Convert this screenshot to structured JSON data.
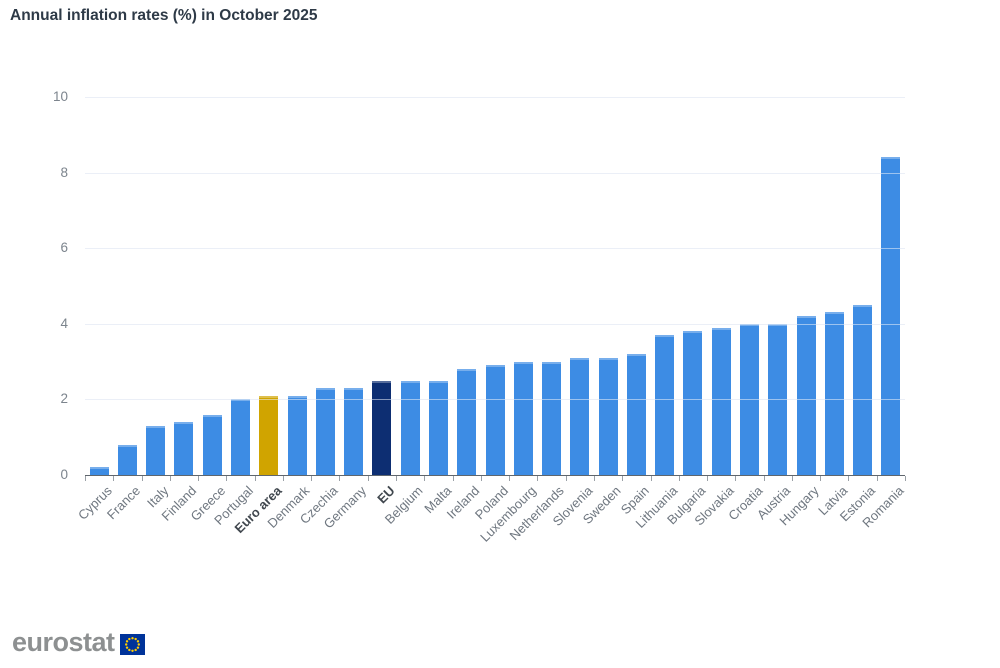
{
  "page": {
    "title": "Annual inflation rates (%) in October 2025"
  },
  "footer": {
    "logo_text": "eurostat",
    "flag_icon": "eu-flag-icon"
  },
  "colors": {
    "bar_default": "#3d8ce4",
    "bar_euro_area": "#d0a400",
    "bar_eu": "#0d2e72",
    "grid": "#e8edf5",
    "axis": "#5f666d",
    "title_text": "#2e3a47",
    "y_label_text": "#7c848d",
    "x_label_text": "#6f7780",
    "x_label_emphasis": "#40474e",
    "logo_text": "#8d9091",
    "flag_blue": "#003399",
    "flag_stars": "#ffcc00"
  },
  "chart_data": {
    "type": "bar",
    "title": "Annual inflation rates (%) in October 2025",
    "xlabel": "",
    "ylabel": "",
    "ylim": [
      0,
      10
    ],
    "yticks": [
      0,
      2,
      4,
      6,
      8,
      10
    ],
    "grid": true,
    "legend": "none",
    "categories": [
      "Cyprus",
      "France",
      "Italy",
      "Finland",
      "Greece",
      "Portugal",
      "Euro area",
      "Denmark",
      "Czechia",
      "Germany",
      "EU",
      "Belgium",
      "Malta",
      "Ireland",
      "Poland",
      "Luxembourg",
      "Netherlands",
      "Slovenia",
      "Sweden",
      "Spain",
      "Lithuania",
      "Bulgaria",
      "Slovakia",
      "Croatia",
      "Austria",
      "Hungary",
      "Latvia",
      "Estonia",
      "Romania"
    ],
    "values": [
      0.2,
      0.8,
      1.3,
      1.4,
      1.6,
      2.0,
      2.1,
      2.1,
      2.3,
      2.3,
      2.5,
      2.5,
      2.5,
      2.8,
      2.9,
      3.0,
      3.0,
      3.1,
      3.1,
      3.2,
      3.7,
      3.8,
      3.9,
      4.0,
      4.0,
      4.2,
      4.3,
      4.5,
      8.4
    ],
    "emphasized": [
      "Euro area",
      "EU"
    ],
    "bar_colors": {
      "default": "#3d8ce4",
      "Euro area": "#d0a400",
      "EU": "#0d2e72"
    }
  }
}
